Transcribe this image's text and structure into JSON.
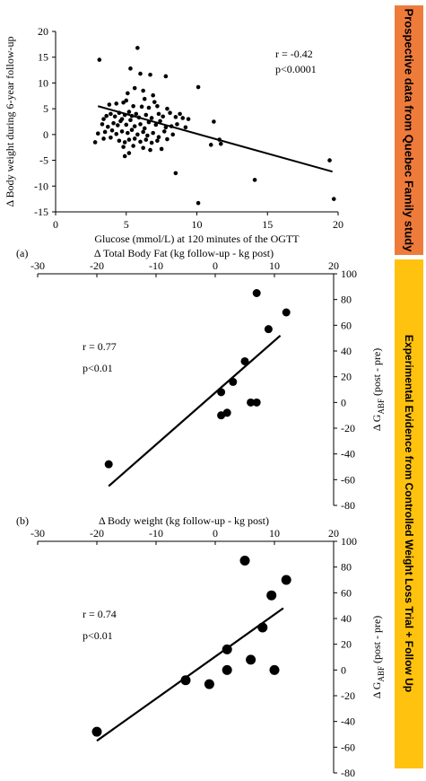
{
  "colors": {
    "band_top": "#ef7b3b",
    "band_bottom": "#ffc20e",
    "axis": "#000000"
  },
  "side_labels": {
    "top": "Prospective data from Quebec Family study",
    "bottom": "Experimental Evidence from Controlled Weight Loss Trial + Follow Up"
  },
  "chart_data": [
    {
      "type": "scatter",
      "panel_label": "",
      "title": "",
      "xlabel": "Glucose (mmol/L) at 120 minutes of the OGTT",
      "ylabel": "Δ Body weight during 6-year follow-up",
      "xlim": [
        0,
        20
      ],
      "ylim": [
        -15,
        20
      ],
      "xticks": [
        0,
        5,
        10,
        15,
        20
      ],
      "yticks": [
        -15,
        -10,
        -5,
        0,
        5,
        10,
        15,
        20
      ],
      "annotation": [
        "r = -0.42",
        "p<0.0001"
      ],
      "trendline": [
        [
          3,
          5.5
        ],
        [
          19.6,
          -7.2
        ]
      ],
      "points": [
        [
          3.1,
          14.5
        ],
        [
          5.8,
          16.8
        ],
        [
          5.3,
          12.8
        ],
        [
          6.0,
          11.8
        ],
        [
          6.7,
          11.6
        ],
        [
          7.8,
          11.3
        ],
        [
          5.6,
          9.0
        ],
        [
          6.2,
          8.5
        ],
        [
          5.1,
          8.0
        ],
        [
          6.9,
          7.6
        ],
        [
          10.1,
          9.2
        ],
        [
          3.8,
          5.8
        ],
        [
          4.3,
          6.0
        ],
        [
          4.8,
          6.2
        ],
        [
          5.0,
          6.6
        ],
        [
          5.5,
          5.5
        ],
        [
          6.1,
          5.4
        ],
        [
          6.6,
          5.2
        ],
        [
          7.2,
          5.5
        ],
        [
          7.9,
          5.0
        ],
        [
          6.3,
          6.9
        ],
        [
          7.0,
          6.3
        ],
        [
          3.4,
          3.0
        ],
        [
          3.6,
          3.6
        ],
        [
          3.9,
          4.0
        ],
        [
          4.2,
          3.5
        ],
        [
          4.5,
          4.2
        ],
        [
          4.7,
          3.0
        ],
        [
          4.9,
          3.8
        ],
        [
          5.2,
          4.4
        ],
        [
          5.4,
          3.6
        ],
        [
          5.7,
          4.0
        ],
        [
          5.9,
          3.3
        ],
        [
          6.4,
          3.8
        ],
        [
          6.8,
          3.2
        ],
        [
          7.3,
          4.0
        ],
        [
          7.6,
          3.5
        ],
        [
          8.1,
          4.2
        ],
        [
          8.5,
          3.4
        ],
        [
          9.0,
          3.2
        ],
        [
          9.4,
          3.0
        ],
        [
          8.8,
          4.0
        ],
        [
          3.3,
          2.0
        ],
        [
          3.7,
          1.5
        ],
        [
          4.1,
          2.2
        ],
        [
          4.4,
          1.8
        ],
        [
          4.6,
          2.6
        ],
        [
          5.0,
          1.9
        ],
        [
          5.3,
          2.8
        ],
        [
          5.6,
          1.6
        ],
        [
          6.0,
          2.0
        ],
        [
          6.3,
          1.2
        ],
        [
          6.6,
          2.4
        ],
        [
          7.1,
          1.9
        ],
        [
          7.4,
          2.6
        ],
        [
          7.8,
          1.4
        ],
        [
          8.2,
          1.6
        ],
        [
          8.6,
          2.0
        ],
        [
          9.2,
          1.4
        ],
        [
          11.2,
          2.5
        ],
        [
          3.0,
          0.2
        ],
        [
          3.5,
          0.5
        ],
        [
          4.0,
          0.8
        ],
        [
          4.3,
          0.1
        ],
        [
          4.7,
          0.6
        ],
        [
          5.1,
          0.3
        ],
        [
          5.4,
          0.9
        ],
        [
          5.8,
          0.0
        ],
        [
          6.2,
          0.5
        ],
        [
          6.5,
          -0.2
        ],
        [
          6.9,
          0.3
        ],
        [
          7.3,
          -0.5
        ],
        [
          7.7,
          0.6
        ],
        [
          8.3,
          0.0
        ],
        [
          2.8,
          -1.5
        ],
        [
          3.4,
          -0.8
        ],
        [
          3.9,
          -0.6
        ],
        [
          4.5,
          -1.2
        ],
        [
          4.9,
          -1.5
        ],
        [
          5.2,
          -1.0
        ],
        [
          5.6,
          -0.8
        ],
        [
          6.0,
          -1.4
        ],
        [
          6.4,
          -1.0
        ],
        [
          6.8,
          -1.6
        ],
        [
          7.2,
          -1.2
        ],
        [
          7.9,
          -0.9
        ],
        [
          11.6,
          -1.0
        ],
        [
          4.8,
          -2.4
        ],
        [
          5.5,
          -2.2
        ],
        [
          6.2,
          -2.6
        ],
        [
          6.7,
          -3.0
        ],
        [
          7.5,
          -2.8
        ],
        [
          11.0,
          -2.0
        ],
        [
          11.7,
          -1.8
        ],
        [
          4.9,
          -4.2
        ],
        [
          5.2,
          -3.6
        ],
        [
          8.5,
          -7.5
        ],
        [
          10.1,
          -13.3
        ],
        [
          14.1,
          -8.8
        ],
        [
          19.4,
          -5.0
        ],
        [
          19.7,
          -12.5
        ]
      ]
    },
    {
      "type": "scatter",
      "panel_label": "(a)",
      "title": "",
      "xlabel": "Δ Total Body Fat (kg follow-up - kg post)",
      "ylabel": "Δ G_ABF (post - pre)",
      "ylabel_main": "Δ G",
      "ylabel_sub": "ABF",
      "ylabel_tail": " (post - pre)",
      "xlim": [
        -30,
        20
      ],
      "ylim": [
        -80,
        100
      ],
      "xticks": [
        -30,
        -20,
        -10,
        0,
        10,
        20
      ],
      "yticks": [
        -80,
        -60,
        -40,
        -20,
        0,
        20,
        40,
        60,
        80,
        100
      ],
      "annotation": [
        "r = 0.77",
        "p<0.01"
      ],
      "trendline": [
        [
          -18,
          -65
        ],
        [
          11,
          52
        ]
      ],
      "points": [
        [
          -18,
          -48
        ],
        [
          1,
          8
        ],
        [
          1,
          -10
        ],
        [
          2,
          -8
        ],
        [
          3,
          16
        ],
        [
          5,
          32
        ],
        [
          6,
          0
        ],
        [
          7,
          0
        ],
        [
          7,
          85
        ],
        [
          9,
          57
        ],
        [
          12,
          70
        ]
      ]
    },
    {
      "type": "scatter",
      "panel_label": "(b)",
      "title": "",
      "xlabel": "Δ Body weight (kg follow-up - kg post)",
      "ylabel": "Δ G_ABF (post - pre)",
      "ylabel_main": "Δ G",
      "ylabel_sub": "ABF",
      "ylabel_tail": " (post - pre)",
      "xlim": [
        -30,
        20
      ],
      "ylim": [
        -80,
        100
      ],
      "xticks": [
        -30,
        -20,
        -10,
        0,
        10,
        20
      ],
      "yticks": [
        -80,
        -60,
        -40,
        -20,
        0,
        20,
        40,
        60,
        80,
        100
      ],
      "annotation": [
        "r = 0.74",
        "p<0.01"
      ],
      "trendline": [
        [
          -20,
          -55
        ],
        [
          11.5,
          48
        ]
      ],
      "points": [
        [
          -20,
          -48
        ],
        [
          -5,
          -8
        ],
        [
          -1,
          -11
        ],
        [
          2,
          16
        ],
        [
          2,
          0
        ],
        [
          5,
          85
        ],
        [
          6,
          8
        ],
        [
          8,
          33
        ],
        [
          9.5,
          58
        ],
        [
          10,
          0
        ],
        [
          12,
          70
        ]
      ]
    }
  ]
}
